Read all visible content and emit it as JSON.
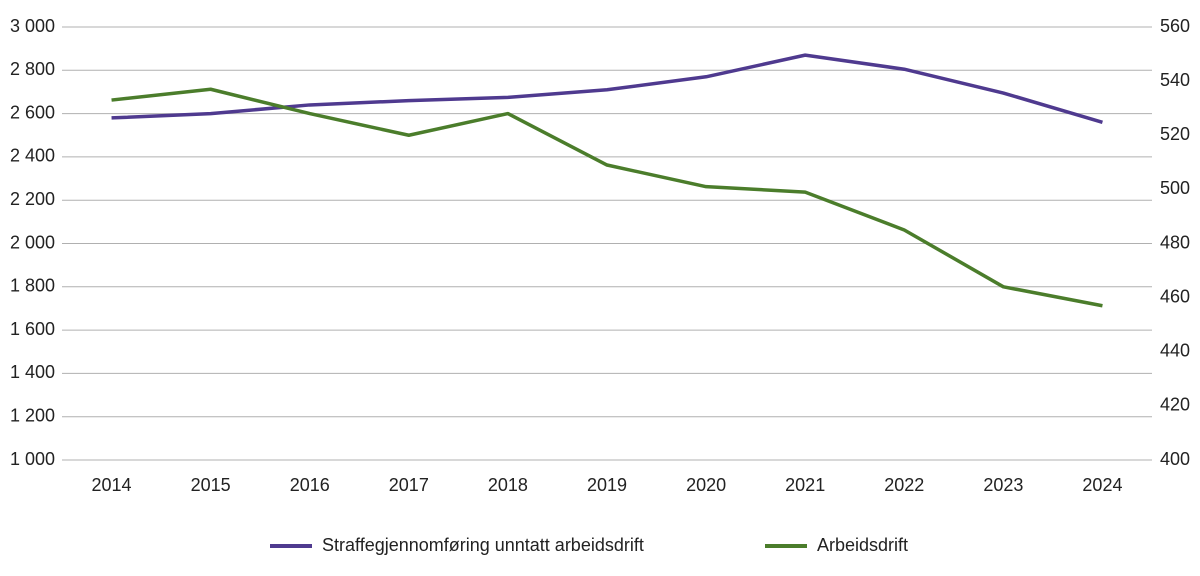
{
  "chart_data": {
    "type": "line",
    "categories": [
      "2014",
      "2015",
      "2016",
      "2017",
      "2018",
      "2019",
      "2020",
      "2021",
      "2022",
      "2023",
      "2024"
    ],
    "series": [
      {
        "name": "Straffegjennomføring unntatt arbeidsdrift",
        "color": "#4f3a8f",
        "values": [
          2580,
          2600,
          2640,
          2660,
          2675,
          2710,
          2770,
          2870,
          2805,
          2695,
          2560
        ]
      },
      {
        "name": "Arbeidsdrift",
        "color": "#4b7d2b",
        "axis": "y2",
        "values": [
          533,
          537,
          528,
          520,
          528,
          509,
          501,
          499,
          485,
          464,
          457
        ]
      }
    ],
    "ylim": [
      1000,
      3000
    ],
    "yticks": [
      {
        "value": 1000,
        "label": "1 000"
      },
      {
        "value": 1200,
        "label": "1 200"
      },
      {
        "value": 1400,
        "label": "1 400"
      },
      {
        "value": 1600,
        "label": "1 600"
      },
      {
        "value": 1800,
        "label": "1 800"
      },
      {
        "value": 2000,
        "label": "2 000"
      },
      {
        "value": 2200,
        "label": "2 200"
      },
      {
        "value": 2400,
        "label": "2 400"
      },
      {
        "value": 2600,
        "label": "2 600"
      },
      {
        "value": 2800,
        "label": "2 800"
      },
      {
        "value": 3000,
        "label": "3 000"
      }
    ],
    "y2lim": [
      400,
      560
    ],
    "y2ticks": [
      400,
      420,
      440,
      460,
      480,
      500,
      520,
      540,
      560
    ],
    "grid": true,
    "legend": "bottom"
  }
}
